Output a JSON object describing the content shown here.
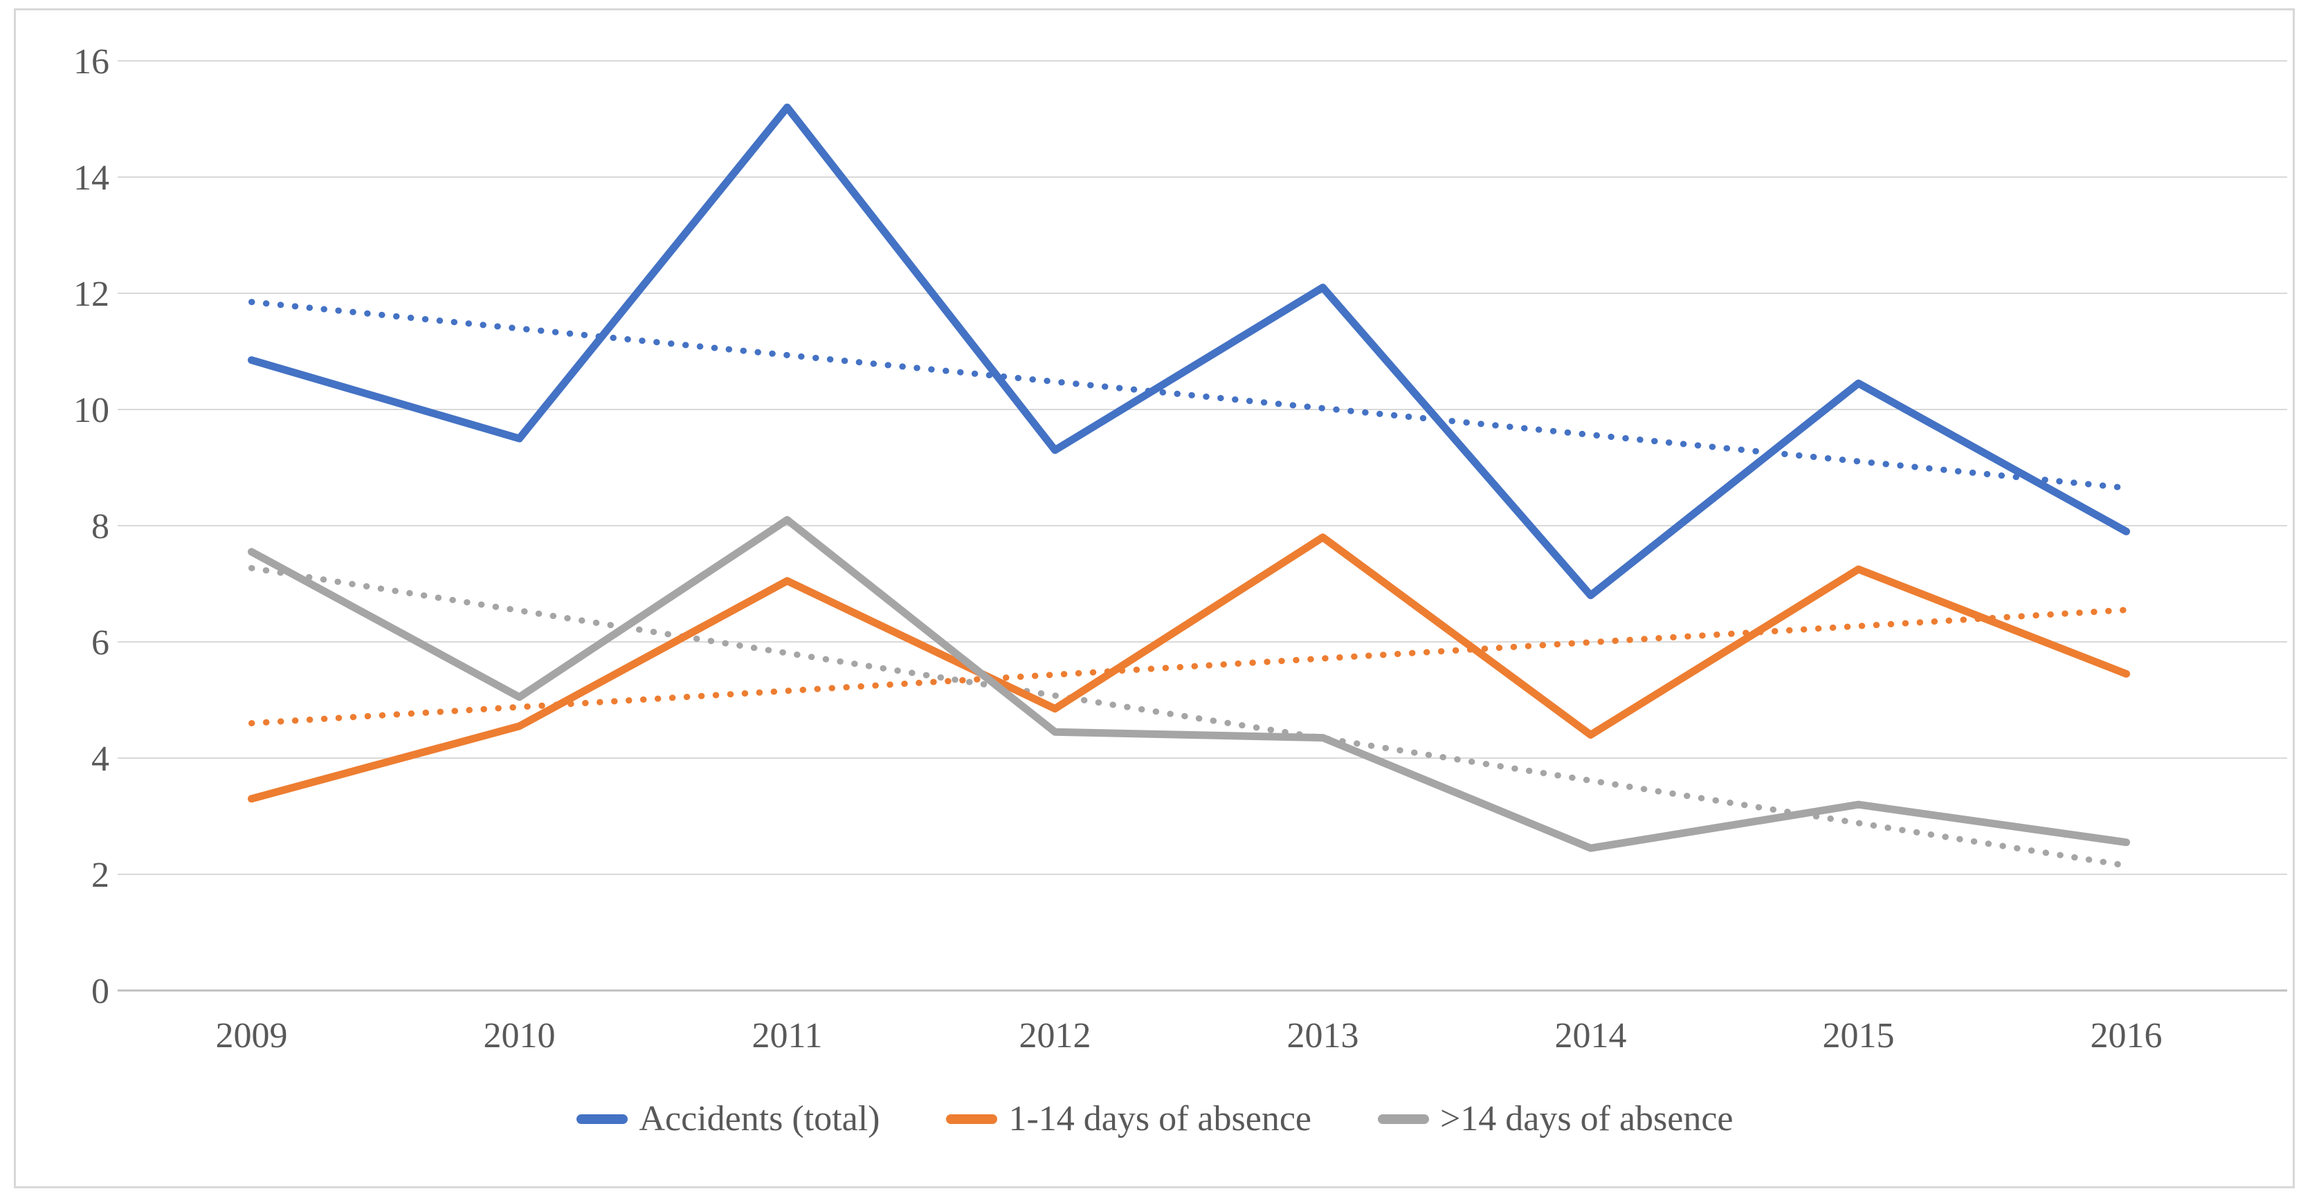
{
  "chart_data": {
    "type": "line",
    "title": "",
    "xlabel": "",
    "ylabel": "",
    "categories": [
      "2009",
      "2010",
      "2011",
      "2012",
      "2013",
      "2014",
      "2015",
      "2016"
    ],
    "series": [
      {
        "name": "Accidents (total)",
        "color": "#4472C4",
        "style": "solid",
        "values": [
          10.85,
          9.5,
          15.2,
          9.3,
          12.1,
          6.8,
          10.45,
          7.9
        ]
      },
      {
        "name": "1-14 days of absence",
        "color": "#ED7D31",
        "style": "solid",
        "values": [
          3.3,
          4.55,
          7.05,
          4.85,
          7.8,
          4.4,
          7.25,
          5.45
        ]
      },
      {
        "name": ">14 days of absence",
        "color": "#A5A5A5",
        "style": "solid",
        "values": [
          7.55,
          5.05,
          8.1,
          4.45,
          4.35,
          2.45,
          3.2,
          2.55
        ]
      }
    ],
    "trendlines": [
      {
        "series": "Accidents (total)",
        "color": "#4472C4",
        "style": "dotted",
        "start": 11.85,
        "end": 8.65
      },
      {
        "series": "1-14 days of absence",
        "color": "#ED7D31",
        "style": "dotted",
        "start": 4.6,
        "end": 6.55
      },
      {
        "series": ">14 days of absence",
        "color": "#A5A5A5",
        "style": "dotted",
        "start": 7.27,
        "end": 2.15
      }
    ],
    "ylim": [
      0,
      16
    ],
    "ytick_step": 2,
    "ytick_labels": [
      "0",
      "2",
      "4",
      "6",
      "8",
      "10",
      "12",
      "14",
      "16"
    ],
    "grid": "horizontal",
    "legend_position": "bottom-center",
    "colors": {
      "gridline": "#D9D9D9",
      "axis_line": "#BFBFBF",
      "axis_text": "#595959",
      "background": "#FFFFFF",
      "frame_border": "#D8D8D8"
    }
  }
}
